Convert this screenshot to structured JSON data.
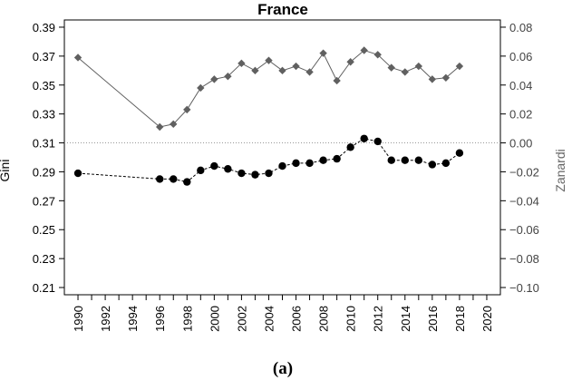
{
  "caption": "(a)",
  "chart_data": {
    "type": "line",
    "title": "France",
    "ylabel": "Gini",
    "y2label": "Zanardi",
    "ylim": [
      0.205,
      0.395
    ],
    "y2lim": [
      -0.105,
      0.085
    ],
    "y_ticks": [
      "0.21",
      "0.23",
      "0.25",
      "0.27",
      "0.29",
      "0.31",
      "0.33",
      "0.35",
      "0.37",
      "0.39"
    ],
    "y2_ticks": [
      "-0.10",
      "-0.08",
      "-0.06",
      "-0.04",
      "-0.02",
      "0.00",
      "0.02",
      "0.04",
      "0.06",
      "0.08"
    ],
    "x_ticks": [
      "1990",
      "1992",
      "1994",
      "1996",
      "1998",
      "2000",
      "2002",
      "2004",
      "2006",
      "2008",
      "2010",
      "2012",
      "2014",
      "2016",
      "2018",
      "2020"
    ],
    "xlim": [
      1989,
      2021
    ],
    "reference_line": {
      "axis": "y2",
      "value": 0.0,
      "style": "dotted"
    },
    "grid": false,
    "series": [
      {
        "axis": "y",
        "marker": "circle",
        "line": "dashed",
        "color": "#000000",
        "x": [
          1990,
          1996,
          1997,
          1998,
          1999,
          2000,
          2001,
          2002,
          2003,
          2004,
          2005,
          2006,
          2007,
          2008,
          2009,
          2010,
          2011,
          2012,
          2013,
          2014,
          2015,
          2016,
          2017,
          2018
        ],
        "values": [
          0.289,
          0.285,
          0.285,
          0.283,
          0.291,
          0.294,
          0.292,
          0.289,
          0.288,
          0.289,
          0.294,
          0.296,
          0.296,
          0.298,
          0.299,
          0.307,
          0.313,
          0.311,
          0.298,
          0.298,
          0.298,
          0.295,
          0.296,
          0.303
        ]
      },
      {
        "axis": "y2",
        "marker": "diamond",
        "line": "solid",
        "color": "#606060",
        "x": [
          1990,
          1996,
          1997,
          1998,
          1999,
          2000,
          2001,
          2002,
          2003,
          2004,
          2005,
          2006,
          2007,
          2008,
          2009,
          2010,
          2011,
          2012,
          2013,
          2014,
          2015,
          2016,
          2017,
          2018
        ],
        "values": [
          0.059,
          0.011,
          0.013,
          0.023,
          0.038,
          0.044,
          0.046,
          0.055,
          0.05,
          0.057,
          0.05,
          0.053,
          0.049,
          0.062,
          0.043,
          0.056,
          0.064,
          0.061,
          0.052,
          0.049,
          0.053,
          0.044,
          0.045,
          0.053
        ]
      }
    ]
  }
}
